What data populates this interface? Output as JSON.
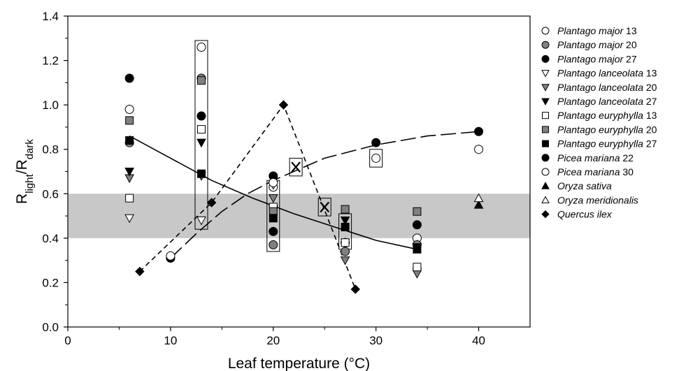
{
  "chart_data": {
    "type": "scatter",
    "xlabel": "Leaf temperature (°C)",
    "ylabel": {
      "main": "R",
      "sub1": "light",
      "sep": "/R",
      "sub2": "dark"
    },
    "xlim": [
      0,
      45
    ],
    "ylim": [
      0.0,
      1.4
    ],
    "xticks": [
      "0",
      "10",
      "20",
      "30",
      "40"
    ],
    "yticks": [
      "0.0",
      "0.2",
      "0.4",
      "0.6",
      "0.8",
      "1.0",
      "1.2",
      "1.4"
    ],
    "shaded_band": [
      0.4,
      0.6
    ],
    "legend_position": "right",
    "series": [
      {
        "name": "Plantago major",
        "suffix": " 13",
        "marker": "circle",
        "fill": "#ffffff",
        "points": [
          [
            6,
            0.98
          ],
          [
            13,
            1.26
          ],
          [
            20,
            0.63
          ],
          [
            27,
            0.38
          ],
          [
            34,
            0.4
          ]
        ]
      },
      {
        "name": "Plantago major",
        "suffix": " 20",
        "marker": "circle",
        "fill": "#808080",
        "points": [
          [
            6,
            0.83
          ],
          [
            13,
            1.12
          ],
          [
            20,
            0.37
          ],
          [
            27,
            0.34
          ],
          [
            34,
            0.37
          ]
        ]
      },
      {
        "name": "Plantago major",
        "suffix": " 27",
        "marker": "circle",
        "fill": "#000000",
        "points": [
          [
            6,
            1.12
          ],
          [
            13,
            0.95
          ],
          [
            20,
            0.43
          ],
          [
            27,
            0.38
          ],
          [
            34,
            0.46
          ]
        ]
      },
      {
        "name": "Plantago lanceolata",
        "suffix": " 13",
        "marker": "triangle-down",
        "fill": "#ffffff",
        "points": [
          [
            6,
            0.49
          ],
          [
            13,
            0.48
          ],
          [
            20,
            0.64
          ],
          [
            27,
            0.38
          ],
          [
            34,
            0.25
          ]
        ]
      },
      {
        "name": "Plantago lanceolata",
        "suffix": " 20",
        "marker": "triangle-down",
        "fill": "#808080",
        "points": [
          [
            6,
            0.67
          ],
          [
            13,
            0.68
          ],
          [
            20,
            0.58
          ],
          [
            27,
            0.3
          ],
          [
            34,
            0.24
          ]
        ]
      },
      {
        "name": "Plantago lanceolata",
        "suffix": " 27",
        "marker": "triangle-down",
        "fill": "#000000",
        "points": [
          [
            6,
            0.7
          ],
          [
            13,
            0.83
          ],
          [
            20,
            0.53
          ],
          [
            27,
            0.48
          ],
          [
            34,
            0.36
          ]
        ]
      },
      {
        "name": "Plantago euryphylla",
        "suffix": " 13",
        "marker": "square",
        "fill": "#ffffff",
        "points": [
          [
            6,
            0.58
          ],
          [
            13,
            0.89
          ],
          [
            20,
            0.54
          ],
          [
            27,
            0.38
          ],
          [
            34,
            0.27
          ]
        ]
      },
      {
        "name": "Plantago euryphylla",
        "suffix": " 20",
        "marker": "square",
        "fill": "#808080",
        "points": [
          [
            6,
            0.93
          ],
          [
            13,
            1.11
          ],
          [
            20,
            0.52
          ],
          [
            27,
            0.53
          ],
          [
            34,
            0.52
          ]
        ]
      },
      {
        "name": "Plantago euryphylla",
        "suffix": " 27",
        "marker": "square",
        "fill": "#000000",
        "points": [
          [
            6,
            0.84
          ],
          [
            13,
            0.69
          ],
          [
            20,
            0.49
          ],
          [
            27,
            0.45
          ],
          [
            34,
            0.35
          ]
        ]
      },
      {
        "name": "Picea mariana",
        "suffix": " 22",
        "marker": "circle",
        "fill": "#000000",
        "points": [
          [
            10,
            0.31
          ],
          [
            20,
            0.68
          ],
          [
            30,
            0.83
          ],
          [
            40,
            0.88
          ]
        ]
      },
      {
        "name": "Picea mariana",
        "suffix": " 30",
        "marker": "circle",
        "fill": "#ffffff",
        "points": [
          [
            10,
            0.32
          ],
          [
            20,
            0.65
          ],
          [
            30,
            0.76
          ],
          [
            40,
            0.8
          ]
        ]
      },
      {
        "name": "Oryza sativa",
        "suffix": "",
        "marker": "triangle-up",
        "fill": "#000000",
        "points": [
          [
            40,
            0.55
          ]
        ]
      },
      {
        "name": "Oryza meridionalis",
        "suffix": "",
        "marker": "triangle-up",
        "fill": "#ffffff",
        "points": [
          [
            40,
            0.58
          ]
        ]
      },
      {
        "name": "Quercus ilex",
        "suffix": "",
        "marker": "diamond",
        "fill": "#000000",
        "points": [
          [
            7,
            0.25
          ],
          [
            14,
            0.56
          ],
          [
            21,
            1.0
          ],
          [
            28,
            0.17
          ]
        ]
      }
    ],
    "cross_markers": [
      [
        22.2,
        0.72
      ],
      [
        25,
        0.54
      ]
    ],
    "highlight_boxes": [
      {
        "x": 13,
        "y0": 0.44,
        "y1": 1.29
      },
      {
        "x": 20,
        "y0": 0.34,
        "y1": 0.66
      },
      {
        "x": 22.2,
        "y0": 0.68,
        "y1": 0.76
      },
      {
        "x": 25,
        "y0": 0.5,
        "y1": 0.58
      },
      {
        "x": 27,
        "y0": 0.35,
        "y1": 0.51
      },
      {
        "x": 30,
        "y0": 0.72,
        "y1": 0.8
      }
    ],
    "curves": [
      {
        "style": "solid",
        "points": [
          [
            6,
            0.86
          ],
          [
            10,
            0.76
          ],
          [
            14,
            0.66
          ],
          [
            18,
            0.58
          ],
          [
            22,
            0.51
          ],
          [
            26,
            0.45
          ],
          [
            30,
            0.39
          ],
          [
            34,
            0.35
          ]
        ]
      },
      {
        "style": "short-dash",
        "points": [
          [
            7,
            0.25
          ],
          [
            14,
            0.56
          ],
          [
            21,
            1.0
          ],
          [
            28,
            0.17
          ]
        ]
      },
      {
        "style": "long-dash",
        "points": [
          [
            10,
            0.31
          ],
          [
            12.5,
            0.42
          ],
          [
            15,
            0.52
          ],
          [
            17.5,
            0.6
          ],
          [
            20,
            0.66
          ],
          [
            22.5,
            0.71
          ],
          [
            25,
            0.76
          ],
          [
            27.5,
            0.79
          ],
          [
            30,
            0.82
          ],
          [
            32.5,
            0.84
          ],
          [
            35,
            0.86
          ],
          [
            37.5,
            0.87
          ],
          [
            40,
            0.88
          ]
        ]
      }
    ]
  }
}
